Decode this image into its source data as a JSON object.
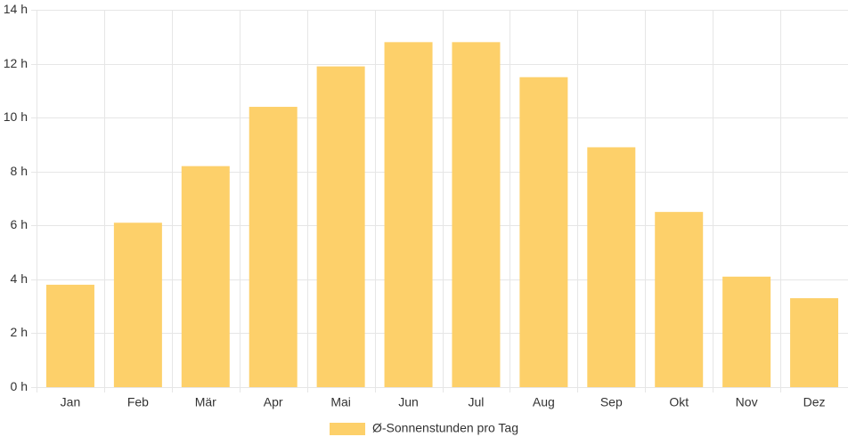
{
  "chart_data": {
    "type": "bar",
    "categories": [
      "Jan",
      "Feb",
      "Mär",
      "Apr",
      "Mai",
      "Jun",
      "Jul",
      "Aug",
      "Sep",
      "Okt",
      "Nov",
      "Dez"
    ],
    "series": [
      {
        "name": "Ø-Sonnenstunden pro Tag",
        "values": [
          3.8,
          6.1,
          8.2,
          10.4,
          11.9,
          12.8,
          12.8,
          11.5,
          8.9,
          6.5,
          4.1,
          3.3
        ]
      }
    ],
    "ylim": [
      0,
      14
    ],
    "ytick_step": 2,
    "ytick_suffix": " h",
    "grid": true,
    "legend_position": "bottom",
    "colors": {
      "bar_fill": "#fdd06a",
      "grid": "#e6e6e6",
      "axis_text": "#333333"
    }
  }
}
